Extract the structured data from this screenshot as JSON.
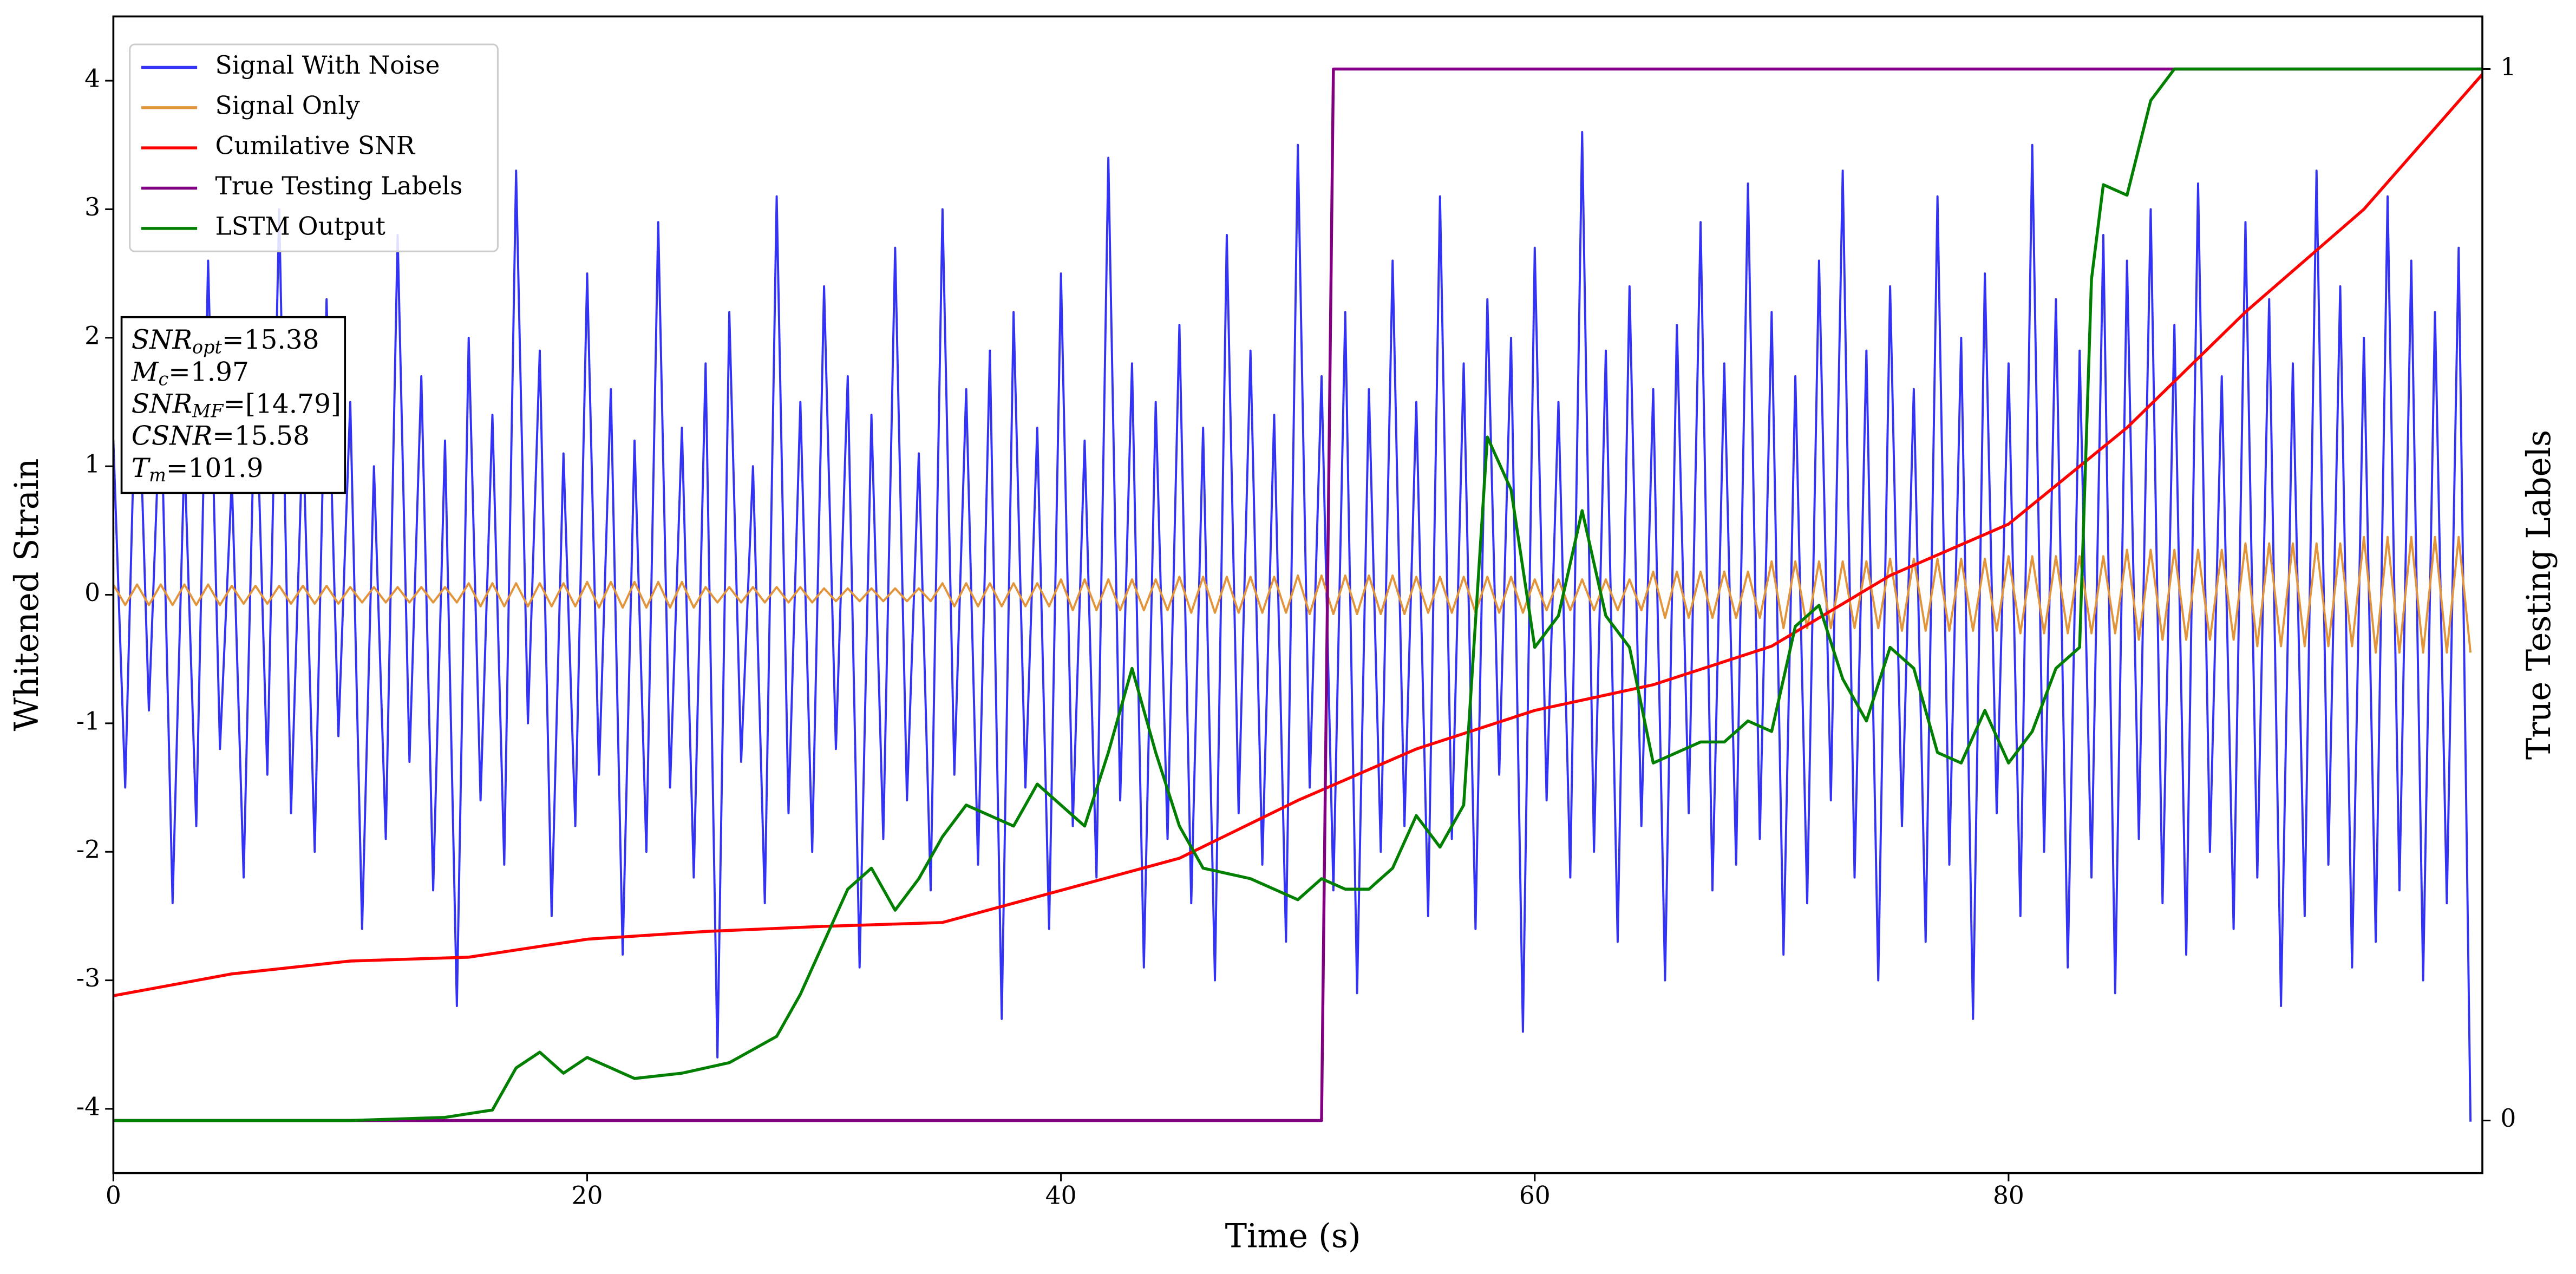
{
  "chart_data": {
    "type": "line",
    "xlabel": "Time (s)",
    "ylabel": "Whitened Strain",
    "y2label": "True Testing Labels",
    "xlim": [
      0,
      100
    ],
    "ylim": [
      -4.5,
      4.5
    ],
    "y2lim": [
      -0.05,
      1.05
    ],
    "xticks": [
      0,
      20,
      40,
      60,
      80
    ],
    "yticks": [
      -4,
      -3,
      -2,
      -1,
      0,
      1,
      2,
      3,
      4
    ],
    "y2ticks": [
      0,
      1
    ],
    "legend": "upper left",
    "x": [
      0,
      0.5,
      1,
      1.5,
      2,
      2.5,
      3,
      3.5,
      4,
      4.5,
      5,
      5.5,
      6,
      6.5,
      7,
      7.5,
      8,
      8.5,
      9,
      9.5,
      10,
      10.5,
      11,
      11.5,
      12,
      12.5,
      13,
      13.5,
      14,
      14.5,
      15,
      15.5,
      16,
      16.5,
      17,
      17.5,
      18,
      18.5,
      19,
      19.5,
      20,
      20.5,
      21,
      21.5,
      22,
      22.5,
      23,
      23.5,
      24,
      24.5,
      25,
      25.5,
      26,
      26.5,
      27,
      27.5,
      28,
      28.5,
      29,
      29.5,
      30,
      30.5,
      31,
      31.5,
      32,
      32.5,
      33,
      33.5,
      34,
      34.5,
      35,
      35.5,
      36,
      36.5,
      37,
      37.5,
      38,
      38.5,
      39,
      39.5,
      40,
      40.5,
      41,
      41.5,
      42,
      42.5,
      43,
      43.5,
      44,
      44.5,
      45,
      45.5,
      46,
      46.5,
      47,
      47.5,
      48,
      48.5,
      49,
      49.5,
      50,
      50.5,
      51,
      51.5,
      52,
      52.5,
      53,
      53.5,
      54,
      54.5,
      55,
      55.5,
      56,
      56.5,
      57,
      57.5,
      58,
      58.5,
      59,
      59.5,
      60,
      60.5,
      61,
      61.5,
      62,
      62.5,
      63,
      63.5,
      64,
      64.5,
      65,
      65.5,
      66,
      66.5,
      67,
      67.5,
      68,
      68.5,
      69,
      69.5,
      70,
      70.5,
      71,
      71.5,
      72,
      72.5,
      73,
      73.5,
      74,
      74.5,
      75,
      75.5,
      76,
      76.5,
      77,
      77.5,
      78,
      78.5,
      79,
      79.5,
      80,
      80.5,
      81,
      81.5,
      82,
      82.5,
      83,
      83.5,
      84,
      84.5,
      85,
      85.5,
      86,
      86.5,
      87,
      87.5,
      88,
      88.5,
      89,
      89.5,
      90,
      90.5,
      91,
      91.5,
      92,
      92.5,
      93,
      93.5,
      94,
      94.5,
      95,
      95.5,
      96,
      96.5,
      97,
      97.5,
      98,
      98.5,
      99,
      99.5
    ],
    "series": [
      {
        "name": "Signal With Noise",
        "color": "#3333f5",
        "values": [
          1.2,
          -1.5,
          2.1,
          -0.9,
          1.6,
          -2.4,
          1.1,
          -1.8,
          2.6,
          -1.2,
          0.9,
          -2.2,
          1.8,
          -1.4,
          3.0,
          -1.7,
          1.3,
          -2.0,
          2.3,
          -1.1,
          1.5,
          -2.6,
          1.0,
          -1.9,
          2.8,
          -1.3,
          1.7,
          -2.3,
          1.2,
          -3.2,
          2.0,
          -1.6,
          1.4,
          -2.1,
          3.3,
          -1.0,
          1.9,
          -2.5,
          1.1,
          -1.8,
          2.5,
          -1.4,
          1.6,
          -2.8,
          1.2,
          -2.0,
          2.9,
          -1.5,
          1.3,
          -2.2,
          1.8,
          -3.6,
          2.2,
          -1.3,
          1.0,
          -2.4,
          3.1,
          -1.7,
          1.5,
          -2.0,
          2.4,
          -1.2,
          1.7,
          -2.9,
          1.4,
          -1.9,
          2.7,
          -1.6,
          1.1,
          -2.3,
          3.0,
          -1.4,
          1.6,
          -2.1,
          1.9,
          -3.3,
          2.2,
          -1.5,
          1.3,
          -2.6,
          2.5,
          -1.8,
          1.2,
          -2.2,
          3.4,
          -1.6,
          1.8,
          -2.9,
          1.5,
          -1.9,
          2.1,
          -2.4,
          1.3,
          -3.0,
          2.8,
          -1.7,
          1.9,
          -2.1,
          1.4,
          -2.7,
          3.5,
          -1.5,
          1.7,
          -2.3,
          2.2,
          -3.1,
          1.6,
          -2.0,
          2.6,
          -1.8,
          1.5,
          -2.5,
          3.1,
          -1.9,
          1.8,
          -2.6,
          2.3,
          -1.4,
          2.0,
          -3.4,
          2.7,
          -1.6,
          1.5,
          -2.2,
          3.6,
          -2.0,
          1.9,
          -2.7,
          2.4,
          -1.8,
          1.6,
          -3.0,
          2.1,
          -1.7,
          2.9,
          -2.3,
          1.8,
          -2.1,
          3.2,
          -1.9,
          2.2,
          -2.8,
          1.7,
          -2.4,
          2.6,
          -1.6,
          3.3,
          -2.2,
          1.9,
          -3.0,
          2.4,
          -1.8,
          1.6,
          -2.7,
          3.1,
          -2.1,
          2.0,
          -3.3,
          2.5,
          -1.7,
          1.8,
          -2.5,
          3.5,
          -2.0,
          2.3,
          -2.9,
          1.9,
          -2.2,
          2.8,
          -3.1,
          2.6,
          -1.9,
          3.0,
          -2.4,
          2.1,
          -2.8,
          3.2,
          -2.0,
          1.7,
          -2.6,
          2.9,
          -2.2,
          2.3,
          -3.2,
          1.8,
          -2.5,
          3.3,
          -2.1,
          2.4,
          -2.9,
          2.0,
          -2.7,
          3.1,
          -2.3,
          2.6,
          -3.0,
          2.2,
          -2.4,
          2.7,
          -4.1
        ]
      },
      {
        "name": "Signal Only",
        "color": "#e3953b",
        "values": [
          0.08,
          -0.08,
          0.08,
          -0.08,
          0.08,
          -0.08,
          0.08,
          -0.08,
          0.08,
          -0.08,
          0.07,
          -0.07,
          0.07,
          -0.07,
          0.07,
          -0.07,
          0.07,
          -0.07,
          0.07,
          -0.07,
          0.06,
          -0.06,
          0.06,
          -0.06,
          0.06,
          -0.06,
          0.06,
          -0.06,
          0.06,
          -0.06,
          0.09,
          -0.09,
          0.09,
          -0.09,
          0.09,
          -0.09,
          0.09,
          -0.09,
          0.09,
          -0.09,
          0.1,
          -0.1,
          0.1,
          -0.1,
          0.1,
          -0.1,
          0.1,
          -0.1,
          0.1,
          -0.1,
          0.06,
          -0.06,
          0.06,
          -0.06,
          0.06,
          -0.06,
          0.06,
          -0.06,
          0.06,
          -0.06,
          0.05,
          -0.05,
          0.05,
          -0.05,
          0.05,
          -0.05,
          0.05,
          -0.05,
          0.05,
          -0.05,
          0.09,
          -0.09,
          0.09,
          -0.09,
          0.09,
          -0.09,
          0.09,
          -0.09,
          0.09,
          -0.09,
          0.12,
          -0.12,
          0.12,
          -0.12,
          0.12,
          -0.12,
          0.12,
          -0.12,
          0.12,
          -0.12,
          0.14,
          -0.14,
          0.14,
          -0.14,
          0.14,
          -0.14,
          0.14,
          -0.14,
          0.14,
          -0.14,
          0.15,
          -0.15,
          0.15,
          -0.15,
          0.15,
          -0.15,
          0.15,
          -0.15,
          0.15,
          -0.15,
          0.14,
          -0.14,
          0.14,
          -0.14,
          0.14,
          -0.14,
          0.14,
          -0.14,
          0.14,
          -0.14,
          0.12,
          -0.12,
          0.12,
          -0.12,
          0.12,
          -0.12,
          0.12,
          -0.12,
          0.12,
          -0.12,
          0.18,
          -0.18,
          0.18,
          -0.18,
          0.18,
          -0.18,
          0.18,
          -0.18,
          0.18,
          -0.18,
          0.26,
          -0.26,
          0.26,
          -0.26,
          0.26,
          -0.26,
          0.26,
          -0.26,
          0.26,
          -0.26,
          0.28,
          -0.28,
          0.28,
          -0.28,
          0.28,
          -0.28,
          0.28,
          -0.28,
          0.28,
          -0.28,
          0.3,
          -0.3,
          0.3,
          -0.3,
          0.3,
          -0.3,
          0.3,
          -0.3,
          0.3,
          -0.3,
          0.35,
          -0.35,
          0.35,
          -0.35,
          0.35,
          -0.35,
          0.35,
          -0.35,
          0.35,
          -0.35,
          0.4,
          -0.4,
          0.4,
          -0.4,
          0.4,
          -0.4,
          0.4,
          -0.4,
          0.4,
          -0.4,
          0.45,
          -0.45,
          0.45,
          -0.45,
          0.45,
          -0.45,
          0.45,
          -0.45,
          0.45,
          -0.45
        ]
      },
      {
        "name": "Cumilative SNR",
        "color": "#ff0000",
        "x": [
          0,
          5,
          10,
          15,
          20,
          25,
          30,
          35,
          40,
          45,
          50,
          55,
          60,
          65,
          70,
          75,
          80,
          85,
          90,
          95,
          100
        ],
        "values": [
          -3.12,
          -2.95,
          -2.85,
          -2.82,
          -2.68,
          -2.62,
          -2.58,
          -2.55,
          -2.3,
          -2.05,
          -1.6,
          -1.2,
          -0.9,
          -0.7,
          -0.4,
          0.15,
          0.55,
          1.3,
          2.2,
          3.0,
          4.05
        ]
      },
      {
        "name": "True Testing Labels",
        "color": "#800080",
        "axis": "y2",
        "x": [
          0,
          51,
          51.5,
          100
        ],
        "values": [
          0,
          0,
          1,
          1
        ]
      },
      {
        "name": "LSTM Output",
        "color": "#007f00",
        "axis": "y2",
        "x": [
          0,
          10,
          14,
          16,
          17,
          18,
          19,
          20,
          21,
          22,
          24,
          26,
          28,
          29,
          30,
          31,
          32,
          33,
          34,
          35,
          36,
          38,
          39,
          40,
          41,
          42,
          43,
          44,
          45,
          46,
          48,
          50,
          51,
          52,
          53,
          54,
          55,
          56,
          57,
          58,
          59,
          60,
          61,
          62,
          63,
          64,
          65,
          66,
          67,
          68,
          69,
          70,
          71,
          72,
          73,
          74,
          75,
          76,
          77,
          78,
          79,
          80,
          81,
          82,
          83,
          83.5,
          84,
          85,
          86,
          87,
          100
        ],
        "values": [
          0,
          0,
          0.003,
          0.01,
          0.05,
          0.065,
          0.045,
          0.06,
          0.05,
          0.04,
          0.045,
          0.055,
          0.08,
          0.12,
          0.17,
          0.22,
          0.24,
          0.2,
          0.23,
          0.27,
          0.3,
          0.28,
          0.32,
          0.3,
          0.28,
          0.35,
          0.43,
          0.35,
          0.28,
          0.24,
          0.23,
          0.21,
          0.23,
          0.22,
          0.22,
          0.24,
          0.29,
          0.26,
          0.3,
          0.65,
          0.6,
          0.45,
          0.48,
          0.58,
          0.48,
          0.45,
          0.34,
          0.35,
          0.36,
          0.36,
          0.38,
          0.37,
          0.47,
          0.49,
          0.42,
          0.38,
          0.45,
          0.43,
          0.35,
          0.34,
          0.39,
          0.34,
          0.37,
          0.43,
          0.45,
          0.8,
          0.89,
          0.88,
          0.97,
          1,
          1
        ]
      }
    ],
    "annotation": [
      {
        "main": "SNR",
        "sub": "opt",
        "rest": "=15.38"
      },
      {
        "main": "M",
        "sub": "c",
        "rest": "=1.97"
      },
      {
        "main": "SNR",
        "sub": "MF",
        "rest": "=[14.79]"
      },
      {
        "main": "CSNR",
        "rest": "=15.58"
      },
      {
        "main": "T",
        "sub": "m",
        "rest": "=101.9"
      }
    ]
  }
}
